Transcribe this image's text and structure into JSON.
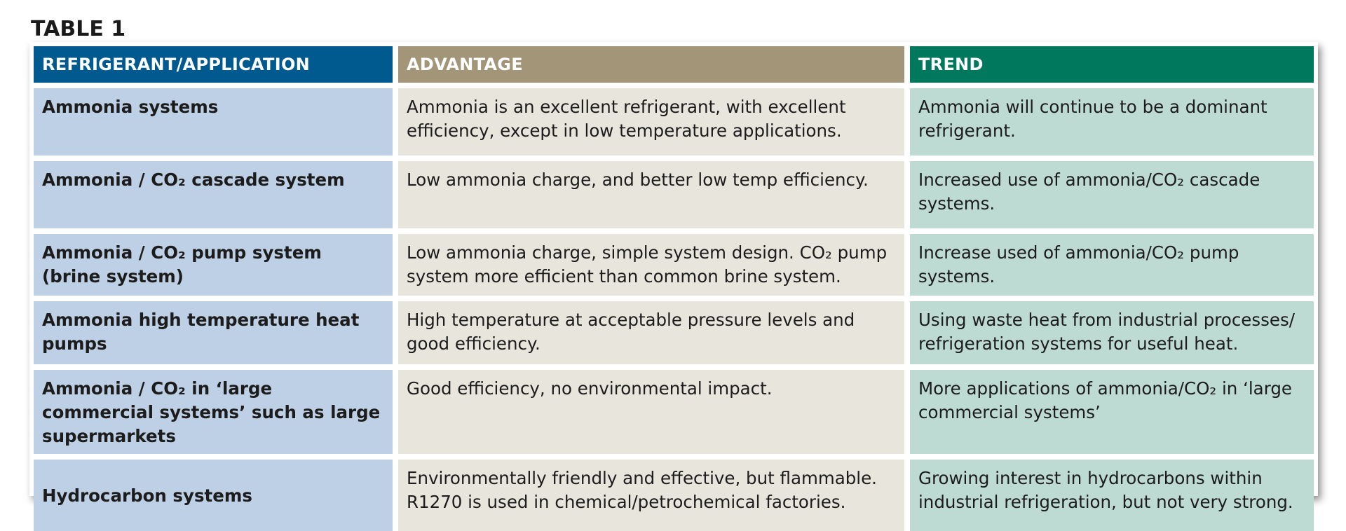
{
  "table_label": "TABLE 1",
  "header": {
    "col1": "REFRIGERANT/APPLICATION",
    "col2": "ADVANTAGE",
    "col3": "TREND"
  },
  "rows": [
    {
      "application": "Ammonia systems",
      "advantage": "Ammonia is an excellent refrigerant, with excellent efficiency, except in low temperature applications.",
      "trend": "Ammonia will continue to be a dominant refrigerant."
    },
    {
      "application": "Ammonia / CO₂ cascade system",
      "advantage": "Low ammonia charge, and better low temp efficiency.",
      "trend": "Increased use of ammonia/CO₂ cascade systems."
    },
    {
      "application": "Ammonia / CO₂ pump system (brine system)",
      "advantage": "Low ammonia charge, simple system design. CO₂ pump system more efficient than common brine system.",
      "trend": "Increase used of ammonia/CO₂ pump systems."
    },
    {
      "application": "Ammonia high temperature heat pumps",
      "advantage": "High temperature at acceptable pressure levels and good efficiency.",
      "trend": "Using waste heat from industrial processes/ refrigeration systems for useful heat."
    },
    {
      "application": "Ammonia / CO₂ in ‘large commercial systems’ such as large supermarkets",
      "advantage": "Good efficiency, no environmental impact.",
      "trend": "More applications of ammonia/CO₂ in ‘large commercial systems’"
    },
    {
      "application": "Hydrocarbon systems",
      "advantage": "Environmentally friendly and effective, but flammable. R1270 is used in chemical/petrochemical factories.",
      "trend": "Growing interest in hydrocarbons within industrial refrigeration, but not very strong."
    }
  ],
  "colors": {
    "header_app": "#005a8f",
    "header_advantage": "#a29578",
    "header_trend": "#00785e",
    "cell_app": "#bed0e5",
    "cell_advantage": "#e8e5dc",
    "cell_trend": "#bddad3"
  }
}
